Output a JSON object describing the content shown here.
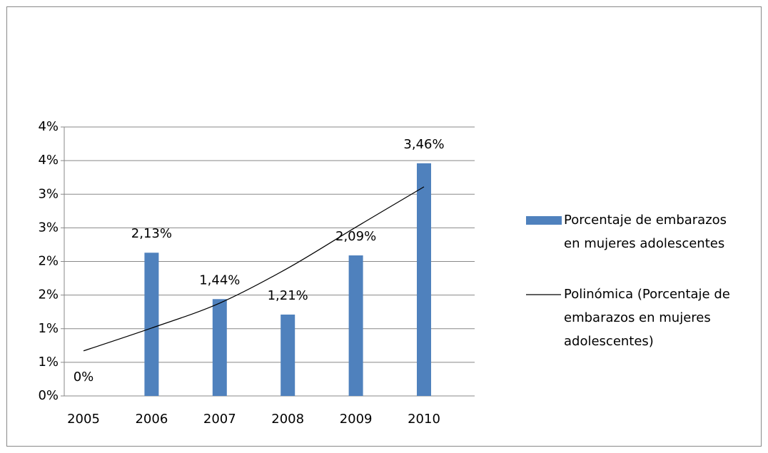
{
  "chart_data": {
    "type": "bar",
    "categories": [
      "2005",
      "2006",
      "2007",
      "2008",
      "2009",
      "2010"
    ],
    "series": [
      {
        "name": "Porcentaje de embarazos en mujeres adolescentes",
        "color": "#4f81bd",
        "values": [
          0,
          2.13,
          1.44,
          1.21,
          2.09,
          3.46
        ],
        "value_labels": [
          "0%",
          "2,13%",
          "1,44%",
          "1,21%",
          "2,09%",
          "3,46%"
        ]
      },
      {
        "name": "Polinómica (Porcentaje de embarazos en mujeres adolescentes)",
        "type": "line",
        "color": "#000000",
        "values": [
          0.67,
          1.01,
          1.38,
          1.9,
          2.51,
          3.11
        ]
      }
    ],
    "ylim": [
      0,
      4
    ],
    "yticks": [
      {
        "value": 0,
        "label": "0%"
      },
      {
        "value": 0.5,
        "label": "1%"
      },
      {
        "value": 1,
        "label": "1%"
      },
      {
        "value": 1.5,
        "label": "2%"
      },
      {
        "value": 2,
        "label": "2%"
      },
      {
        "value": 2.5,
        "label": "3%"
      },
      {
        "value": 3,
        "label": "3%"
      },
      {
        "value": 3.5,
        "label": "4%"
      },
      {
        "value": 4,
        "label": "4%"
      }
    ],
    "grid": true,
    "legend": "right"
  }
}
